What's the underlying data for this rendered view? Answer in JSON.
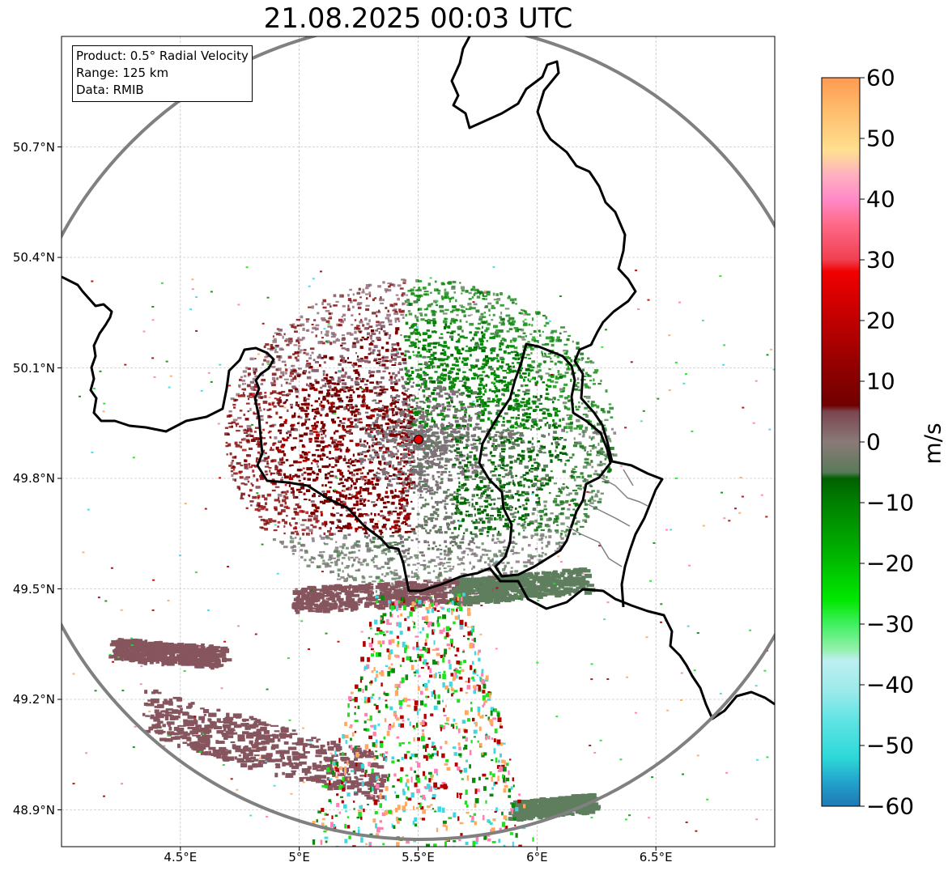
{
  "title": "21.08.2025 00:03 UTC",
  "info_box": {
    "product": "Product: 0.5° Radial Velocity",
    "range": "Range: 125 km",
    "data": "Data: RMIB"
  },
  "map": {
    "lon_range": [
      4.0,
      7.0
    ],
    "lat_range": [
      48.8,
      51.0
    ],
    "radar_site": {
      "lon": 5.505,
      "lat": 49.915
    },
    "range_km": 125,
    "gridlines": true,
    "x_ticks": [
      {
        "value": 4.5,
        "label": "4.5°E"
      },
      {
        "value": 5.0,
        "label": "5°E"
      },
      {
        "value": 5.5,
        "label": "5.5°E"
      },
      {
        "value": 6.0,
        "label": "6°E"
      },
      {
        "value": 6.5,
        "label": "6.5°E"
      }
    ],
    "y_ticks": [
      {
        "value": 50.7,
        "label": "50.7°N"
      },
      {
        "value": 50.4,
        "label": "50.4°N"
      },
      {
        "value": 50.1,
        "label": "50.1°N"
      },
      {
        "value": 49.8,
        "label": "49.8°N"
      },
      {
        "value": 49.5,
        "label": "49.5°N"
      },
      {
        "value": 49.2,
        "label": "49.2°N"
      },
      {
        "value": 48.9,
        "label": "48.9°N"
      }
    ],
    "border_color": "#000000",
    "range_ring_color": "#808080",
    "marker_color": "#e00000"
  },
  "colorbar": {
    "unit": "m/s",
    "range": [
      -60,
      60
    ],
    "ticks": [
      {
        "value": 60,
        "label": "60"
      },
      {
        "value": 50,
        "label": "50"
      },
      {
        "value": 40,
        "label": "40"
      },
      {
        "value": 30,
        "label": "30"
      },
      {
        "value": 20,
        "label": "20"
      },
      {
        "value": 10,
        "label": "10"
      },
      {
        "value": 0,
        "label": "0"
      },
      {
        "value": -10,
        "label": "−10"
      },
      {
        "value": -20,
        "label": "−20"
      },
      {
        "value": -30,
        "label": "−30"
      },
      {
        "value": -40,
        "label": "−40"
      },
      {
        "value": -50,
        "label": "−50"
      },
      {
        "value": -60,
        "label": "−60"
      }
    ],
    "stops": [
      {
        "value": -60,
        "color": "#1f78b4"
      },
      {
        "value": -56,
        "color": "#22a3cc"
      },
      {
        "value": -52,
        "color": "#2dd8d8"
      },
      {
        "value": -46,
        "color": "#5ee3e3"
      },
      {
        "value": -41,
        "color": "#9ceaea"
      },
      {
        "value": -36,
        "color": "#bdf0f0"
      },
      {
        "value": -34,
        "color": "#90f0a8"
      },
      {
        "value": -30,
        "color": "#40f060"
      },
      {
        "value": -26,
        "color": "#00e800"
      },
      {
        "value": -18,
        "color": "#00b000"
      },
      {
        "value": -10,
        "color": "#008000"
      },
      {
        "value": -6,
        "color": "#006000"
      },
      {
        "value": -5,
        "color": "#5a7a5a"
      },
      {
        "value": 0,
        "color": "#8a7a78"
      },
      {
        "value": 5,
        "color": "#7a4550"
      },
      {
        "value": 6,
        "color": "#700000"
      },
      {
        "value": 12,
        "color": "#900000"
      },
      {
        "value": 20,
        "color": "#c00000"
      },
      {
        "value": 28,
        "color": "#f00000"
      },
      {
        "value": 30,
        "color": "#f04050"
      },
      {
        "value": 36,
        "color": "#ff6a8a"
      },
      {
        "value": 40,
        "color": "#ff8ac8"
      },
      {
        "value": 44,
        "color": "#ffb0c0"
      },
      {
        "value": 48,
        "color": "#ffe090"
      },
      {
        "value": 54,
        "color": "#ffc070"
      },
      {
        "value": 60,
        "color": "#ff9a50"
      }
    ]
  },
  "echo_colors": {
    "outbound_dark": "#7a0000",
    "outbound_mid": "#b00000",
    "inbound_green": "#0a8a0a",
    "inbound_dark": "#006a00",
    "near_zero_mauve": "#8a6470",
    "near_zero_gray": "#7d7278",
    "stratiform_green": "#5e7e5e",
    "stratiform_mauve": "#86555d",
    "noise_cyan": "#40d8e0",
    "noise_bright_green": "#20e020",
    "noise_pink": "#ff80b0",
    "noise_orange": "#ffa860"
  }
}
